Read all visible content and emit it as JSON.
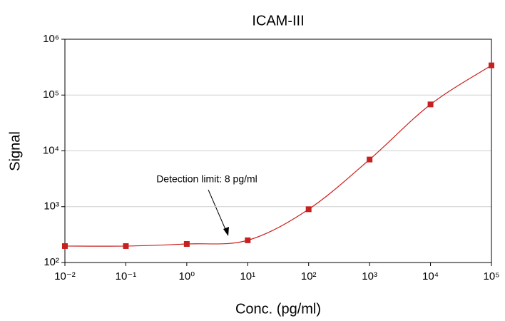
{
  "chart_data": {
    "type": "scatter",
    "title": "ICAM-III",
    "x_label": "Conc. (pg/ml)",
    "y_label": "Signal",
    "annotation": "Detection limit: 8 pg/ml",
    "x": [
      0.01,
      0.1,
      1,
      10,
      100,
      1000,
      10000,
      100000
    ],
    "values": [
      197,
      197,
      215,
      250,
      900,
      7000,
      68000,
      340000
    ],
    "color": "#c8201e",
    "xscale": "log",
    "yscale": "log",
    "grid": true,
    "xlim": [
      0.01,
      100000
    ],
    "xticks": [
      {
        "value": 0.01,
        "label": "10⁻²"
      },
      {
        "value": 0.1,
        "label": "10⁻¹"
      },
      {
        "value": 1,
        "label": "10⁰"
      },
      {
        "value": 10,
        "label": "10¹"
      },
      {
        "value": 100,
        "label": "10²"
      },
      {
        "value": 1000,
        "label": "10³"
      },
      {
        "value": 10000,
        "label": "10⁴"
      },
      {
        "value": 100000,
        "label": "10⁵"
      }
    ],
    "ylim": [
      100,
      1000000
    ],
    "yticks": [
      {
        "value": 100,
        "label": "10²"
      },
      {
        "value": 1000,
        "label": "10³"
      },
      {
        "value": 10000,
        "label": "10⁴"
      },
      {
        "value": 100000,
        "label": "10⁵"
      },
      {
        "value": 1000000,
        "label": "10⁶"
      }
    ]
  }
}
